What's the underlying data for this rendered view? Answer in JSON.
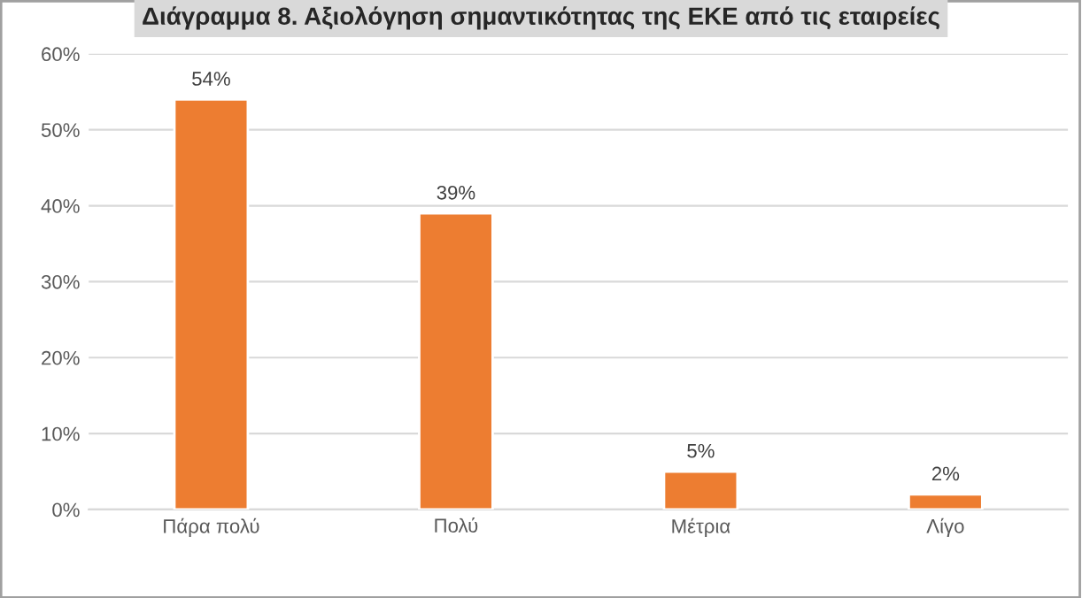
{
  "chart_data": {
    "type": "bar",
    "title": "Διάγραμμα 8. Αξιολόγηση σημαντικότητας της ΕΚΕ από τις εταιρείες",
    "categories": [
      "Πάρα πολύ",
      "Πολύ",
      "Μέτρια",
      "Λίγο"
    ],
    "values": [
      54,
      39,
      5,
      2
    ],
    "value_labels": [
      "54%",
      "39%",
      "5%",
      "2%"
    ],
    "color": "#ed7d31",
    "ylim": [
      0,
      60
    ],
    "yticks": [
      {
        "value": 0,
        "label": "0%"
      },
      {
        "value": 10,
        "label": "10%"
      },
      {
        "value": 20,
        "label": "20%"
      },
      {
        "value": 30,
        "label": "30%"
      },
      {
        "value": 40,
        "label": "40%"
      },
      {
        "value": 50,
        "label": "50%"
      },
      {
        "value": 60,
        "label": "60%"
      }
    ],
    "grid": "y",
    "legend": false
  }
}
